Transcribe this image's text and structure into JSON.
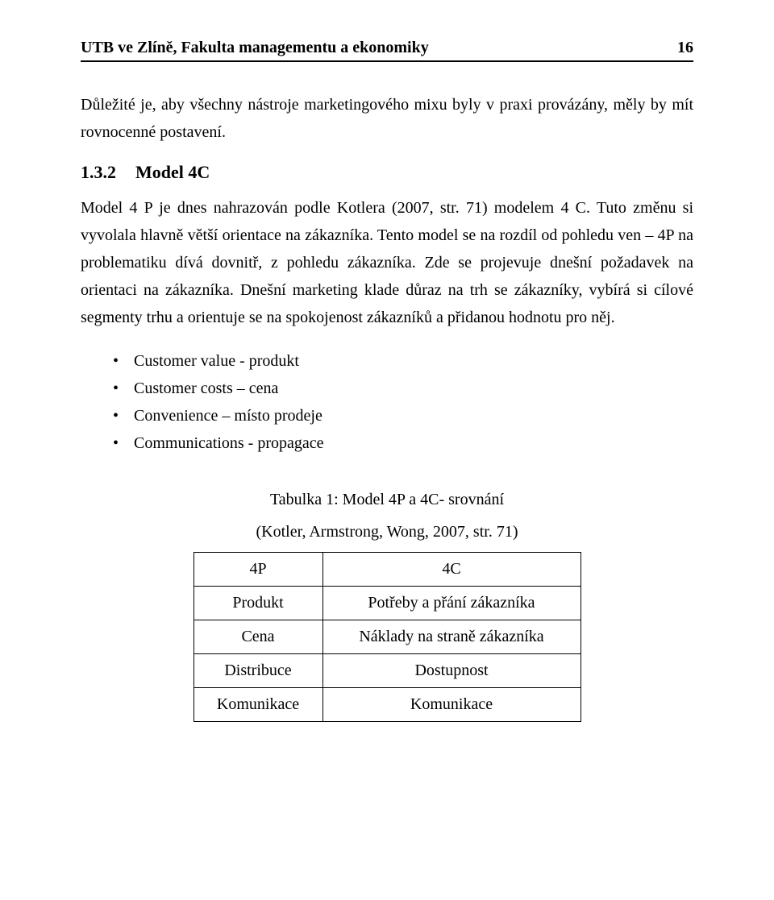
{
  "header": {
    "title": "UTB ve Zlíně, Fakulta managementu a ekonomiky",
    "page_number": "16"
  },
  "intro_paragraph": "Důležité je, aby všechny nástroje marketingového mixu byly v praxi provázány, měly by mít rovnocenné postavení.",
  "section": {
    "number": "1.3.2",
    "title": "Model 4C"
  },
  "body_paragraph": "Model 4 P je dnes nahrazován podle Kotlera (2007, str. 71) modelem 4 C. Tuto změnu si vyvolala hlavně větší orientace na zákazníka. Tento model se na rozdíl od pohledu ven – 4P na problematiku dívá dovnitř, z pohledu zákazníka. Zde se projevuje dnešní požadavek na orientaci na zákazníka. Dnešní marketing klade důraz na trh se zákazníky, vybírá si cílové segmenty trhu a orientuje se na spokojenost zákazníků a přidanou hodnotu pro něj.",
  "bullets": [
    "Customer value - produkt",
    "Customer costs – cena",
    "Convenience – místo prodeje",
    "Communications - propagace"
  ],
  "table": {
    "caption_line1": "Tabulka 1: Model 4P a 4C- srovnání",
    "caption_line2": "(Kotler, Armstrong, Wong, 2007, str. 71)",
    "header_left": "4P",
    "header_right": "4C",
    "rows": [
      {
        "left": "Produkt",
        "right": "Potřeby a přání zákazníka"
      },
      {
        "left": "Cena",
        "right": "Náklady na straně zákazníka"
      },
      {
        "left": "Distribuce",
        "right": "Dostupnost"
      },
      {
        "left": "Komunikace",
        "right": "Komunikace"
      }
    ]
  }
}
